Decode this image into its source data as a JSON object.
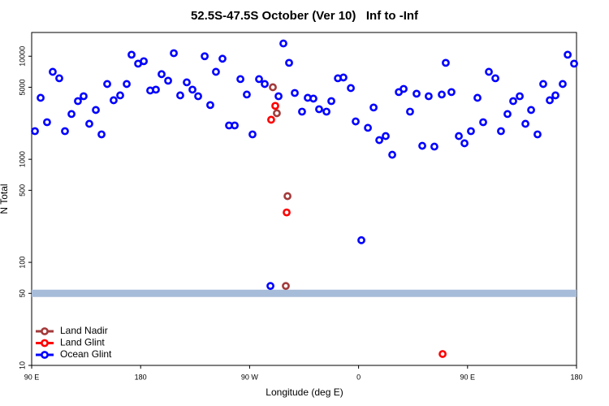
{
  "chart_data": {
    "type": "scatter",
    "title": "52.5S-47.5S October (Ver 10)   Inf to -Inf",
    "x_label": "Longitude (deg E)",
    "y_label": "N Total",
    "log_y": true,
    "xlim": [
      90,
      540
    ],
    "ylim": [
      10,
      17000
    ],
    "xticks": [
      {
        "value": 90,
        "label": "90 E"
      },
      180,
      {
        "value": 270,
        "label": "90 W"
      },
      {
        "value": 360,
        "label": "0"
      },
      {
        "value": 450,
        "label": "90 E"
      },
      {
        "value": 540,
        "label": "180"
      }
    ],
    "yticks": [
      10,
      50,
      100,
      500,
      1000,
      5000,
      10000
    ],
    "reference_line": {
      "value": 50,
      "color": "#a7bcd8"
    },
    "legend": "bottom-left",
    "series": [
      {
        "name": "Land Nadir",
        "color": "#a33a3a",
        "x": [
          289.2,
          292.5,
          301.3,
          299.9
        ],
        "values": [
          5000,
          2800,
          439,
          59
        ]
      },
      {
        "name": "Land Glint",
        "color": "#ff0000",
        "x": [
          291.2,
          287.8,
          300.6,
          429.4
        ],
        "values": [
          3300,
          2420,
          305,
          12.9
        ]
      },
      {
        "name": "Ocean Glint",
        "color": "#0000ff",
        "x": [
          92.7,
          97.4,
          102.7,
          107.4,
          112.8,
          117.5,
          122.9,
          128.2,
          132.9,
          137.6,
          143,
          147.7,
          152.4,
          157.7,
          163.1,
          168.5,
          172.5,
          177.9,
          182.6,
          187.9,
          192.6,
          197.3,
          202.7,
          207.4,
          212.7,
          218.1,
          222.8,
          227.5,
          232.9,
          237.5,
          242.2,
          247.6,
          253,
          257.7,
          262.4,
          267.7,
          272.4,
          277.8,
          282.5,
          287.2,
          293.9,
          297.9,
          302.6,
          307.3,
          313.3,
          318,
          322.7,
          327.4,
          333.5,
          337.5,
          342.9,
          347.5,
          353.6,
          357.6,
          362.3,
          367.7,
          372.4,
          377.1,
          382.4,
          387.8,
          393.2,
          397.2,
          402.5,
          407.9,
          412.6,
          417.9,
          422.6,
          428.7,
          432,
          436.7,
          442.8,
          447.5,
          452.8,
          458.2,
          462.9,
          467.6,
          473,
          477.6,
          483,
          487.7,
          493.1,
          497.8,
          502.5,
          507.8,
          512.5,
          517.9,
          522.6,
          528.6,
          532.7,
          538
        ],
        "values": [
          1875,
          3950,
          2290,
          7060,
          6110,
          1875,
          2750,
          3670,
          4090,
          2210,
          3010,
          1745,
          5380,
          3740,
          4170,
          5380,
          10350,
          8470,
          8950,
          4650,
          4740,
          6700,
          5790,
          10700,
          4170,
          5580,
          4740,
          4090,
          10000,
          3360,
          7060,
          9460,
          2130,
          2130,
          6000,
          4250,
          1745,
          6000,
          5380,
          59,
          4090,
          13300,
          8630,
          4400,
          2900,
          3950,
          3880,
          3060,
          2900,
          3670,
          6110,
          6220,
          4910,
          2330,
          164,
          2020,
          3180,
          1535,
          1680,
          1107,
          4490,
          4820,
          2900,
          4330,
          1352,
          4090,
          1328,
          4250,
          8630,
          4490,
          1680,
          1430,
          1875,
          3950,
          2290,
          7060,
          6110,
          1875,
          2750,
          3670,
          4090,
          2210,
          3010,
          1745,
          5380,
          3740,
          4170,
          5380,
          10350,
          8470
        ]
      }
    ]
  }
}
